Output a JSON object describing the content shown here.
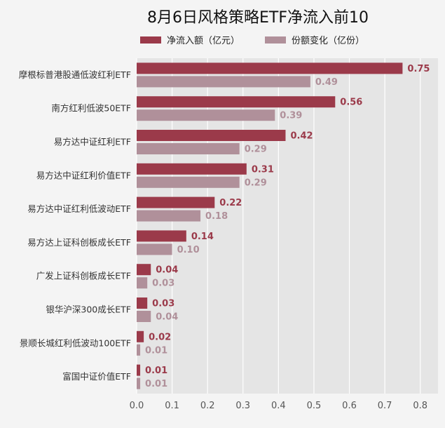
{
  "chart_data": {
    "type": "bar",
    "orientation": "horizontal",
    "title": "8月6日风格策略ETF净流入前10",
    "categories": [
      "摩根标普港股通低波红利ETF",
      "南方红利低波50ETF",
      "易方达中证红利ETF",
      "易方达中证红利价值ETF",
      "易方达中证红利低波动ETF",
      "易方达上证科创板成长ETF",
      "广发上证科创板成长ETF",
      "银华沪深300成长ETF",
      "景顺长城红利低波动100ETF",
      "富国中证价值ETF"
    ],
    "series": [
      {
        "name": "净流入额（亿元）",
        "color": "#9b3a4a",
        "values": [
          0.75,
          0.56,
          0.42,
          0.31,
          0.22,
          0.14,
          0.04,
          0.03,
          0.02,
          0.01
        ],
        "labels": [
          "0.75",
          "0.56",
          "0.42",
          "0.31",
          "0.22",
          "0.14",
          "0.04",
          "0.03",
          "0.02",
          "0.01"
        ]
      },
      {
        "name": "份额变化（亿份）",
        "color": "#b0909a",
        "values": [
          0.49,
          0.39,
          0.29,
          0.29,
          0.18,
          0.1,
          0.03,
          0.04,
          0.01,
          0.01
        ],
        "labels": [
          "0.49",
          "0.39",
          "0.29",
          "0.29",
          "0.18",
          "0.10",
          "0.03",
          "0.04",
          "0.01",
          "0.01"
        ]
      }
    ],
    "xlim": [
      0,
      0.85
    ],
    "xticks": [
      "0.0",
      "0.1",
      "0.2",
      "0.3",
      "0.4",
      "0.5",
      "0.6",
      "0.7",
      "0.8"
    ],
    "xtick_values": [
      0,
      0.1,
      0.2,
      0.3,
      0.4,
      0.5,
      0.6,
      0.7,
      0.8
    ],
    "grid": true,
    "legend_position": "top-center",
    "plot_background": "#e5e5e5"
  }
}
